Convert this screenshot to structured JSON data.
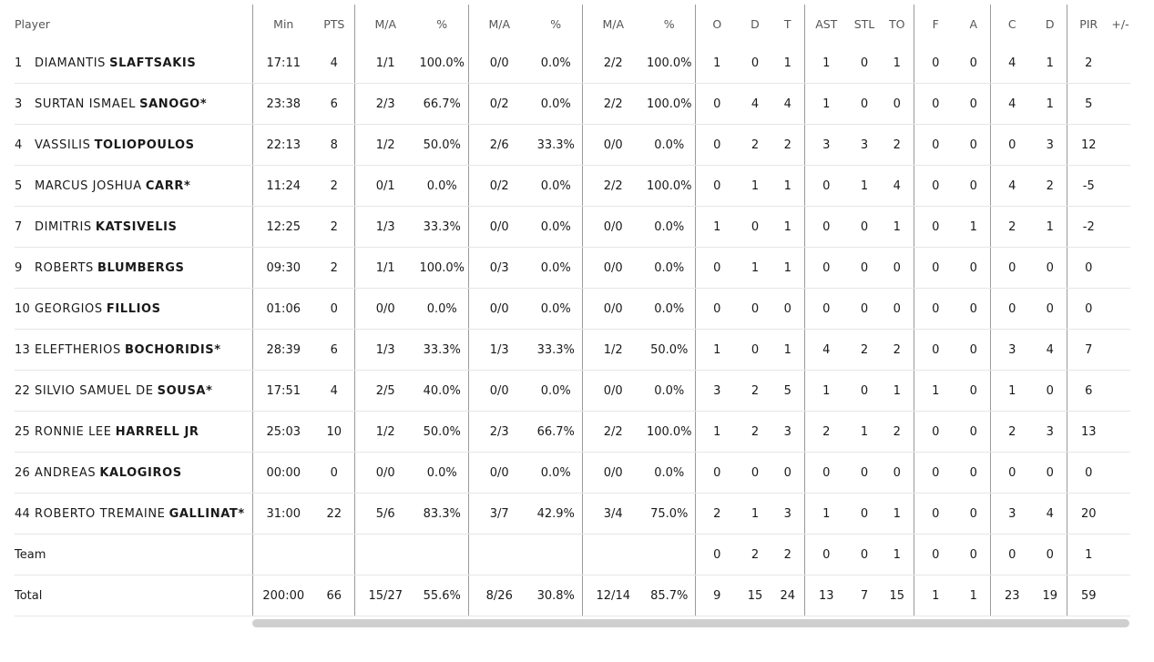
{
  "headers": {
    "player": "Player",
    "min": "Min",
    "pts": "PTS",
    "fg2_ma": "M/A",
    "fg2_pct": "%",
    "fg3_ma": "M/A",
    "fg3_pct": "%",
    "ft_ma": "M/A",
    "ft_pct": "%",
    "reb_o": "O",
    "reb_d": "D",
    "reb_t": "T",
    "ast": "AST",
    "stl": "STL",
    "to": "TO",
    "blk_f": "F",
    "blk_a": "A",
    "fouls_c": "C",
    "fouls_d": "D",
    "pir": "PIR",
    "pm": "+/-"
  },
  "players": [
    {
      "num": "1",
      "first": "DIAMANTIS",
      "last": "SLAFTSAKIS",
      "min": "17:11",
      "pts": "4",
      "fg2_ma": "1/1",
      "fg2_pct": "100.0%",
      "fg3_ma": "0/0",
      "fg3_pct": "0.0%",
      "ft_ma": "2/2",
      "ft_pct": "100.0%",
      "o": "1",
      "d": "0",
      "t": "1",
      "ast": "1",
      "stl": "0",
      "to": "1",
      "f": "0",
      "a": "0",
      "c": "4",
      "fd": "1",
      "pir": "2",
      "pm": ""
    },
    {
      "num": "3",
      "first": "SURTAN ISMAEL",
      "last": "SANOGO*",
      "min": "23:38",
      "pts": "6",
      "fg2_ma": "2/3",
      "fg2_pct": "66.7%",
      "fg3_ma": "0/2",
      "fg3_pct": "0.0%",
      "ft_ma": "2/2",
      "ft_pct": "100.0%",
      "o": "0",
      "d": "4",
      "t": "4",
      "ast": "1",
      "stl": "0",
      "to": "0",
      "f": "0",
      "a": "0",
      "c": "4",
      "fd": "1",
      "pir": "5",
      "pm": ""
    },
    {
      "num": "4",
      "first": "VASSILIS",
      "last": "TOLIOPOULOS",
      "min": "22:13",
      "pts": "8",
      "fg2_ma": "1/2",
      "fg2_pct": "50.0%",
      "fg3_ma": "2/6",
      "fg3_pct": "33.3%",
      "ft_ma": "0/0",
      "ft_pct": "0.0%",
      "o": "0",
      "d": "2",
      "t": "2",
      "ast": "3",
      "stl": "3",
      "to": "2",
      "f": "0",
      "a": "0",
      "c": "0",
      "fd": "3",
      "pir": "12",
      "pm": ""
    },
    {
      "num": "5",
      "first": "MARCUS JOSHUA",
      "last": "CARR*",
      "min": "11:24",
      "pts": "2",
      "fg2_ma": "0/1",
      "fg2_pct": "0.0%",
      "fg3_ma": "0/2",
      "fg3_pct": "0.0%",
      "ft_ma": "2/2",
      "ft_pct": "100.0%",
      "o": "0",
      "d": "1",
      "t": "1",
      "ast": "0",
      "stl": "1",
      "to": "4",
      "f": "0",
      "a": "0",
      "c": "4",
      "fd": "2",
      "pir": "-5",
      "pm": ""
    },
    {
      "num": "7",
      "first": "DIMITRIS",
      "last": "KATSIVELIS",
      "min": "12:25",
      "pts": "2",
      "fg2_ma": "1/3",
      "fg2_pct": "33.3%",
      "fg3_ma": "0/0",
      "fg3_pct": "0.0%",
      "ft_ma": "0/0",
      "ft_pct": "0.0%",
      "o": "1",
      "d": "0",
      "t": "1",
      "ast": "0",
      "stl": "0",
      "to": "1",
      "f": "0",
      "a": "1",
      "c": "2",
      "fd": "1",
      "pir": "-2",
      "pm": ""
    },
    {
      "num": "9",
      "first": "ROBERTS",
      "last": "BLUMBERGS",
      "min": "09:30",
      "pts": "2",
      "fg2_ma": "1/1",
      "fg2_pct": "100.0%",
      "fg3_ma": "0/3",
      "fg3_pct": "0.0%",
      "ft_ma": "0/0",
      "ft_pct": "0.0%",
      "o": "0",
      "d": "1",
      "t": "1",
      "ast": "0",
      "stl": "0",
      "to": "0",
      "f": "0",
      "a": "0",
      "c": "0",
      "fd": "0",
      "pir": "0",
      "pm": ""
    },
    {
      "num": "10",
      "first": "GEORGIOS",
      "last": "FILLIOS",
      "min": "01:06",
      "pts": "0",
      "fg2_ma": "0/0",
      "fg2_pct": "0.0%",
      "fg3_ma": "0/0",
      "fg3_pct": "0.0%",
      "ft_ma": "0/0",
      "ft_pct": "0.0%",
      "o": "0",
      "d": "0",
      "t": "0",
      "ast": "0",
      "stl": "0",
      "to": "0",
      "f": "0",
      "a": "0",
      "c": "0",
      "fd": "0",
      "pir": "0",
      "pm": ""
    },
    {
      "num": "13",
      "first": "ELEFTHERIOS",
      "last": "BOCHORIDIS*",
      "min": "28:39",
      "pts": "6",
      "fg2_ma": "1/3",
      "fg2_pct": "33.3%",
      "fg3_ma": "1/3",
      "fg3_pct": "33.3%",
      "ft_ma": "1/2",
      "ft_pct": "50.0%",
      "o": "1",
      "d": "0",
      "t": "1",
      "ast": "4",
      "stl": "2",
      "to": "2",
      "f": "0",
      "a": "0",
      "c": "3",
      "fd": "4",
      "pir": "7",
      "pm": ""
    },
    {
      "num": "22",
      "first": "SILVIO SAMUEL DE",
      "last": "SOUSA*",
      "min": "17:51",
      "pts": "4",
      "fg2_ma": "2/5",
      "fg2_pct": "40.0%",
      "fg3_ma": "0/0",
      "fg3_pct": "0.0%",
      "ft_ma": "0/0",
      "ft_pct": "0.0%",
      "o": "3",
      "d": "2",
      "t": "5",
      "ast": "1",
      "stl": "0",
      "to": "1",
      "f": "1",
      "a": "0",
      "c": "1",
      "fd": "0",
      "pir": "6",
      "pm": ""
    },
    {
      "num": "25",
      "first": "RONNIE LEE",
      "last": "HARRELL JR",
      "min": "25:03",
      "pts": "10",
      "fg2_ma": "1/2",
      "fg2_pct": "50.0%",
      "fg3_ma": "2/3",
      "fg3_pct": "66.7%",
      "ft_ma": "2/2",
      "ft_pct": "100.0%",
      "o": "1",
      "d": "2",
      "t": "3",
      "ast": "2",
      "stl": "1",
      "to": "2",
      "f": "0",
      "a": "0",
      "c": "2",
      "fd": "3",
      "pir": "13",
      "pm": ""
    },
    {
      "num": "26",
      "first": "ANDREAS",
      "last": "KALOGIROS",
      "min": "00:00",
      "pts": "0",
      "fg2_ma": "0/0",
      "fg2_pct": "0.0%",
      "fg3_ma": "0/0",
      "fg3_pct": "0.0%",
      "ft_ma": "0/0",
      "ft_pct": "0.0%",
      "o": "0",
      "d": "0",
      "t": "0",
      "ast": "0",
      "stl": "0",
      "to": "0",
      "f": "0",
      "a": "0",
      "c": "0",
      "fd": "0",
      "pir": "0",
      "pm": ""
    },
    {
      "num": "44",
      "first": "ROBERTO TREMAINE",
      "last": "GALLINAT*",
      "min": "31:00",
      "pts": "22",
      "fg2_ma": "5/6",
      "fg2_pct": "83.3%",
      "fg3_ma": "3/7",
      "fg3_pct": "42.9%",
      "ft_ma": "3/4",
      "ft_pct": "75.0%",
      "o": "2",
      "d": "1",
      "t": "3",
      "ast": "1",
      "stl": "0",
      "to": "1",
      "f": "0",
      "a": "0",
      "c": "3",
      "fd": "4",
      "pir": "20",
      "pm": ""
    }
  ],
  "team": {
    "label": "Team",
    "min": "",
    "pts": "",
    "fg2_ma": "",
    "fg2_pct": "",
    "fg3_ma": "",
    "fg3_pct": "",
    "ft_ma": "",
    "ft_pct": "",
    "o": "0",
    "d": "2",
    "t": "2",
    "ast": "0",
    "stl": "0",
    "to": "1",
    "f": "0",
    "a": "0",
    "c": "0",
    "fd": "0",
    "pir": "1",
    "pm": ""
  },
  "total": {
    "label": "Total",
    "min": "200:00",
    "pts": "66",
    "fg2_ma": "15/27",
    "fg2_pct": "55.6%",
    "fg3_ma": "8/26",
    "fg3_pct": "30.8%",
    "ft_ma": "12/14",
    "ft_pct": "85.7%",
    "o": "9",
    "d": "15",
    "t": "24",
    "ast": "13",
    "stl": "7",
    "to": "15",
    "f": "1",
    "a": "1",
    "c": "23",
    "fd": "19",
    "pir": "59",
    "pm": ""
  }
}
